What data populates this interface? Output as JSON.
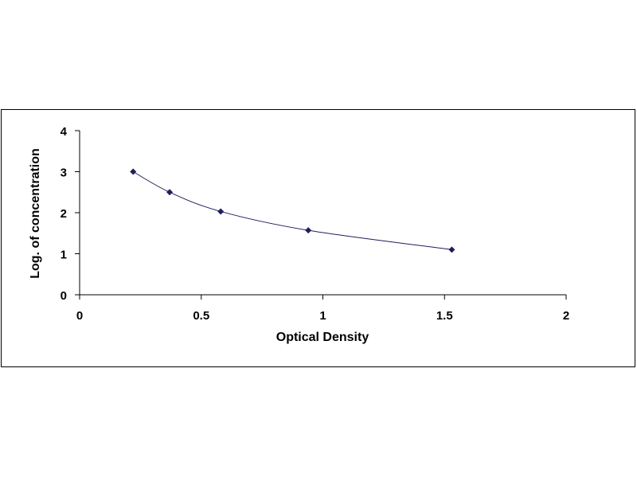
{
  "chart_data": {
    "type": "scatter",
    "title": "",
    "xlabel": "Optical Density",
    "ylabel": "Log. of concentration",
    "xlim": [
      0,
      2
    ],
    "ylim": [
      0,
      4
    ],
    "x_ticks": [
      "0",
      "0.5",
      "1",
      "1.5",
      "2"
    ],
    "y_ticks": [
      "0",
      "1",
      "2",
      "3",
      "4"
    ],
    "grid": false,
    "legend": "none",
    "series": [
      {
        "x": [
          0.22,
          0.37,
          0.58,
          0.94,
          1.53
        ],
        "y": [
          3.0,
          2.5,
          2.03,
          1.57,
          1.1
        ]
      }
    ],
    "trendline": "smooth-curve",
    "colors": {
      "marker": "#1f1f5c",
      "line": "#1f1f5c",
      "axis": "#000000"
    }
  }
}
